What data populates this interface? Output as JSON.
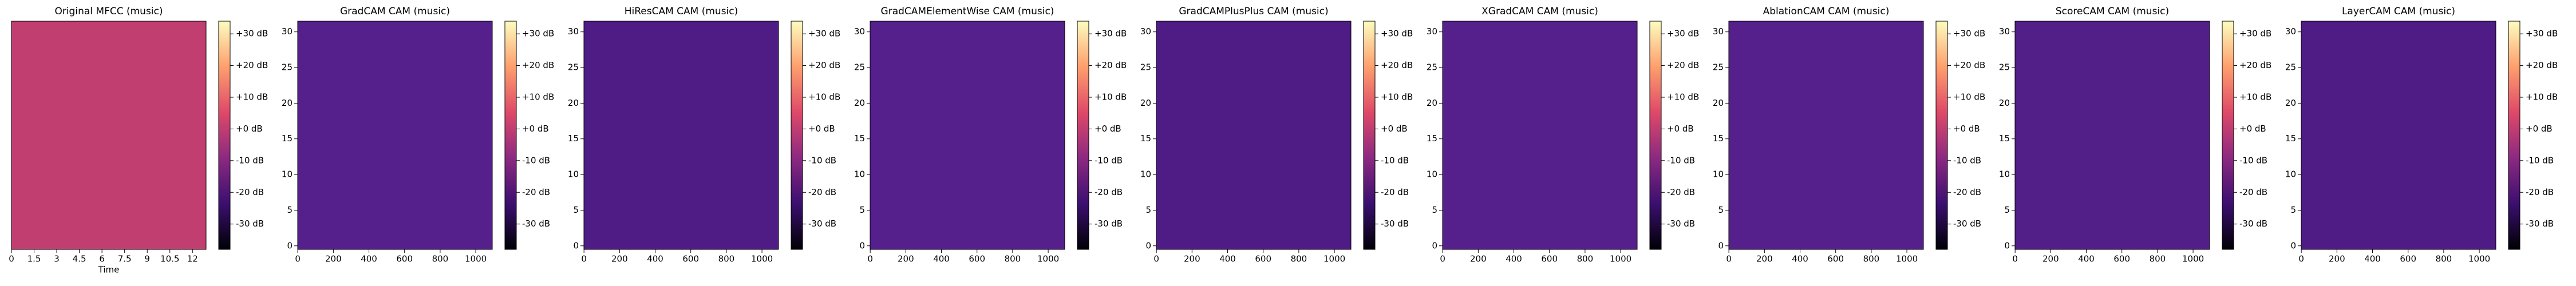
{
  "chart_data": [
    {
      "type": "heatmap",
      "title": "Original MFCC (music)",
      "xlabel": "Time",
      "color": "#c13f70",
      "xlim": [
        0,
        12.9
      ],
      "xticks": [
        0,
        1.5,
        3,
        4.5,
        6,
        7.5,
        9,
        10.5,
        12
      ],
      "ylim": [
        0,
        1
      ],
      "yticks": [],
      "clim": [
        -38,
        34
      ],
      "cticks": [
        {
          "value": 30,
          "label": "+30 dB"
        },
        {
          "value": 20,
          "label": "+20 dB"
        },
        {
          "value": 10,
          "label": "+10 dB"
        },
        {
          "value": 0,
          "label": "+0 dB"
        },
        {
          "value": -10,
          "label": "-10 dB"
        },
        {
          "value": -20,
          "label": "-20 dB"
        },
        {
          "value": -30,
          "label": "-30 dB"
        }
      ]
    },
    {
      "type": "heatmap",
      "title": "GradCAM CAM (music)",
      "color": "#55208c",
      "xlim": [
        -0.5,
        1093
      ],
      "xticks": [
        0,
        200,
        400,
        600,
        800,
        1000
      ],
      "ylim": [
        -0.5,
        31.5
      ],
      "yticks": [
        0,
        5,
        10,
        15,
        20,
        25,
        30
      ],
      "clim": [
        -38,
        34
      ],
      "cticks": [
        {
          "value": 30,
          "label": "+30 dB"
        },
        {
          "value": 20,
          "label": "+20 dB"
        },
        {
          "value": 10,
          "label": "+10 dB"
        },
        {
          "value": 0,
          "label": "+0 dB"
        },
        {
          "value": -10,
          "label": "-10 dB"
        },
        {
          "value": -20,
          "label": "-20 dB"
        },
        {
          "value": -30,
          "label": "-30 dB"
        }
      ]
    },
    {
      "type": "heatmap",
      "title": "HiResCAM CAM (music)",
      "color": "#4f1c86",
      "xlim": [
        -0.5,
        1093
      ],
      "xticks": [
        0,
        200,
        400,
        600,
        800,
        1000
      ],
      "ylim": [
        -0.5,
        31.5
      ],
      "yticks": [
        0,
        5,
        10,
        15,
        20,
        25,
        30
      ],
      "clim": [
        -38,
        34
      ],
      "cticks": [
        {
          "value": 30,
          "label": "+30 dB"
        },
        {
          "value": 20,
          "label": "+20 dB"
        },
        {
          "value": 10,
          "label": "+10 dB"
        },
        {
          "value": 0,
          "label": "+0 dB"
        },
        {
          "value": -10,
          "label": "-10 dB"
        },
        {
          "value": -20,
          "label": "-20 dB"
        },
        {
          "value": -30,
          "label": "-30 dB"
        }
      ]
    },
    {
      "type": "heatmap",
      "title": "GradCAMElementWise CAM (music)",
      "color": "#55208c",
      "xlim": [
        -0.5,
        1093
      ],
      "xticks": [
        0,
        200,
        400,
        600,
        800,
        1000
      ],
      "ylim": [
        -0.5,
        31.5
      ],
      "yticks": [
        0,
        5,
        10,
        15,
        20,
        25,
        30
      ],
      "clim": [
        -38,
        34
      ],
      "cticks": [
        {
          "value": 30,
          "label": "+30 dB"
        },
        {
          "value": 20,
          "label": "+20 dB"
        },
        {
          "value": 10,
          "label": "+10 dB"
        },
        {
          "value": 0,
          "label": "+0 dB"
        },
        {
          "value": -10,
          "label": "-10 dB"
        },
        {
          "value": -20,
          "label": "-20 dB"
        },
        {
          "value": -30,
          "label": "-30 dB"
        }
      ]
    },
    {
      "type": "heatmap",
      "title": "GradCAMPlusPlus CAM (music)",
      "color": "#4f1c86",
      "xlim": [
        -0.5,
        1093
      ],
      "xticks": [
        0,
        200,
        400,
        600,
        800,
        1000
      ],
      "ylim": [
        -0.5,
        31.5
      ],
      "yticks": [
        0,
        5,
        10,
        15,
        20,
        25,
        30
      ],
      "clim": [
        -38,
        34
      ],
      "cticks": [
        {
          "value": 30,
          "label": "+30 dB"
        },
        {
          "value": 20,
          "label": "+20 dB"
        },
        {
          "value": 10,
          "label": "+10 dB"
        },
        {
          "value": 0,
          "label": "+0 dB"
        },
        {
          "value": -10,
          "label": "-10 dB"
        },
        {
          "value": -20,
          "label": "-20 dB"
        },
        {
          "value": -30,
          "label": "-30 dB"
        }
      ]
    },
    {
      "type": "heatmap",
      "title": "XGradCAM CAM (music)",
      "color": "#55208c",
      "xlim": [
        -0.5,
        1093
      ],
      "xticks": [
        0,
        200,
        400,
        600,
        800,
        1000
      ],
      "ylim": [
        -0.5,
        31.5
      ],
      "yticks": [
        0,
        5,
        10,
        15,
        20,
        25,
        30
      ],
      "clim": [
        -38,
        34
      ],
      "cticks": [
        {
          "value": 30,
          "label": "+30 dB"
        },
        {
          "value": 20,
          "label": "+20 dB"
        },
        {
          "value": 10,
          "label": "+10 dB"
        },
        {
          "value": 0,
          "label": "+0 dB"
        },
        {
          "value": -10,
          "label": "-10 dB"
        },
        {
          "value": -20,
          "label": "-20 dB"
        },
        {
          "value": -30,
          "label": "-30 dB"
        }
      ]
    },
    {
      "type": "heatmap",
      "title": "AblationCAM CAM (music)",
      "color": "#55208c",
      "xlim": [
        -0.5,
        1093
      ],
      "xticks": [
        0,
        200,
        400,
        600,
        800,
        1000
      ],
      "ylim": [
        -0.5,
        31.5
      ],
      "yticks": [
        0,
        5,
        10,
        15,
        20,
        25,
        30
      ],
      "clim": [
        -38,
        34
      ],
      "cticks": [
        {
          "value": 30,
          "label": "+30 dB"
        },
        {
          "value": 20,
          "label": "+20 dB"
        },
        {
          "value": 10,
          "label": "+10 dB"
        },
        {
          "value": 0,
          "label": "+0 dB"
        },
        {
          "value": -10,
          "label": "-10 dB"
        },
        {
          "value": -20,
          "label": "-20 dB"
        },
        {
          "value": -30,
          "label": "-30 dB"
        }
      ]
    },
    {
      "type": "heatmap",
      "title": "ScoreCAM CAM (music)",
      "color": "#521e88",
      "xlim": [
        -0.5,
        1093
      ],
      "xticks": [
        0,
        200,
        400,
        600,
        800,
        1000
      ],
      "ylim": [
        -0.5,
        31.5
      ],
      "yticks": [
        0,
        5,
        10,
        15,
        20,
        25,
        30
      ],
      "clim": [
        -38,
        34
      ],
      "cticks": [
        {
          "value": 30,
          "label": "+30 dB"
        },
        {
          "value": 20,
          "label": "+20 dB"
        },
        {
          "value": 10,
          "label": "+10 dB"
        },
        {
          "value": 0,
          "label": "+0 dB"
        },
        {
          "value": -10,
          "label": "-10 dB"
        },
        {
          "value": -20,
          "label": "-20 dB"
        },
        {
          "value": -30,
          "label": "-30 dB"
        }
      ]
    },
    {
      "type": "heatmap",
      "title": "LayerCAM CAM (music)",
      "color": "#4f1c86",
      "xlim": [
        -0.5,
        1093
      ],
      "xticks": [
        0,
        200,
        400,
        600,
        800,
        1000
      ],
      "ylim": [
        -0.5,
        31.5
      ],
      "yticks": [
        0,
        5,
        10,
        15,
        20,
        25,
        30
      ],
      "clim": [
        -38,
        34
      ],
      "cticks": [
        {
          "value": 30,
          "label": "+30 dB"
        },
        {
          "value": 20,
          "label": "+20 dB"
        },
        {
          "value": 10,
          "label": "+10 dB"
        },
        {
          "value": 0,
          "label": "+0 dB"
        },
        {
          "value": -10,
          "label": "-10 dB"
        },
        {
          "value": -20,
          "label": "-20 dB"
        },
        {
          "value": -30,
          "label": "-30 dB"
        }
      ]
    }
  ]
}
